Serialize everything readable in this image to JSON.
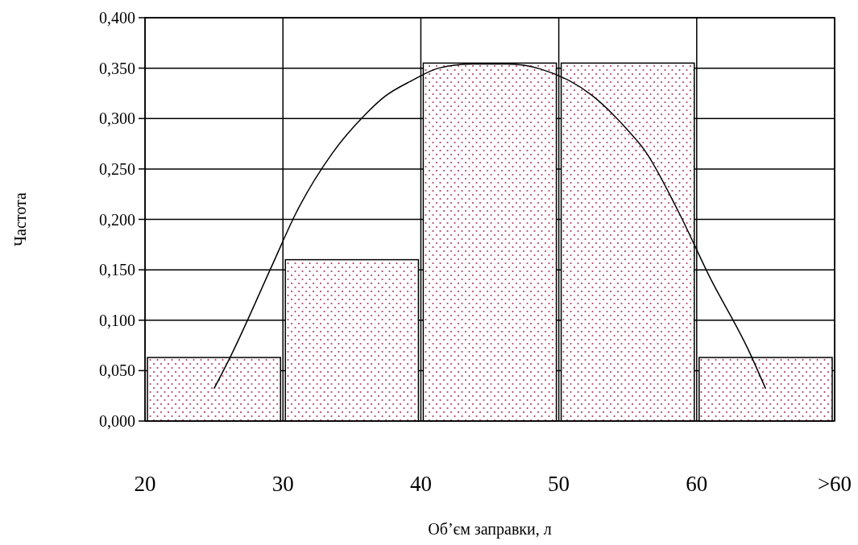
{
  "chart_data": {
    "type": "histogram",
    "xlabel": "Об’єм заправки, л",
    "ylabel": "Частота",
    "xlim": [
      20,
      70
    ],
    "xticks": [
      20,
      30,
      40,
      50,
      60,
      {
        "value": 70,
        "label": ">60"
      }
    ],
    "ylim": [
      0,
      0.4
    ],
    "yticks": [
      {
        "value": 0,
        "label": "0,000"
      },
      {
        "value": 0.05,
        "label": "0,050"
      },
      {
        "value": 0.1,
        "label": "0,100"
      },
      {
        "value": 0.15,
        "label": "0,150"
      },
      {
        "value": 0.2,
        "label": "0,200"
      },
      {
        "value": 0.25,
        "label": "0,250"
      },
      {
        "value": 0.3,
        "label": "0,300"
      },
      {
        "value": 0.35,
        "label": "0,350"
      },
      {
        "value": 0.4,
        "label": "0,400"
      }
    ],
    "grid": true,
    "series": [
      {
        "bins": [
          20,
          30,
          40,
          50,
          60,
          70
        ],
        "values": [
          0.063,
          0.16,
          0.355,
          0.355,
          0.063
        ],
        "color": "#b03a6a"
      },
      {
        "type": "line",
        "color": "#000000",
        "x": [
          25,
          26.2,
          29.3,
          30.9,
          33.6,
          35.9,
          37.4,
          39.4,
          41.3,
          43.8,
          46.3,
          48.7,
          52.4,
          54.9,
          56.2,
          58.7,
          60.9,
          63.8,
          65
        ],
        "values": [
          0.032,
          0.064,
          0.157,
          0.205,
          0.266,
          0.303,
          0.322,
          0.338,
          0.35,
          0.354,
          0.354,
          0.349,
          0.323,
          0.29,
          0.269,
          0.207,
          0.144,
          0.069,
          0.032
        ]
      }
    ]
  }
}
